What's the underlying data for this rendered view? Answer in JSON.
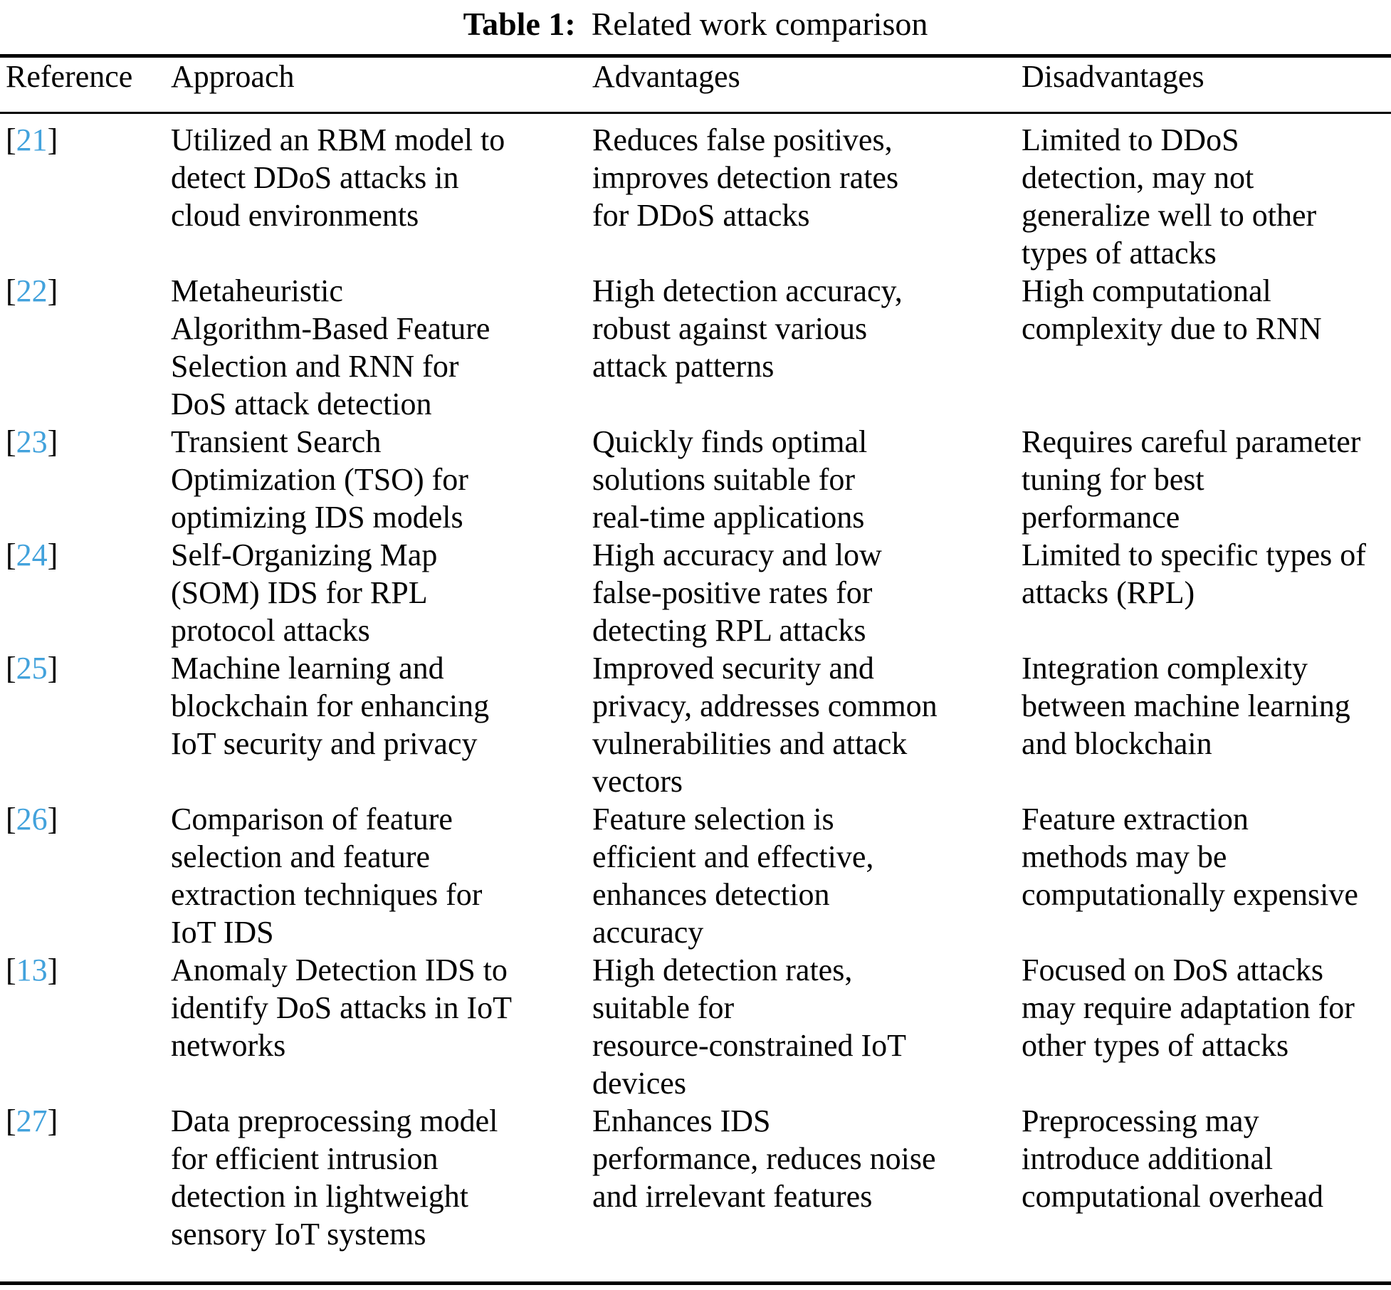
{
  "title": {
    "label": "Table 1:",
    "text": "Related work comparison"
  },
  "colors": {
    "reference_link_blue": "#42a2dc",
    "rule_black": "#000000",
    "text_black": "#000000"
  },
  "table": {
    "headers": [
      "Reference",
      "Approach",
      "Advantages",
      "Disadvantages"
    ],
    "bracket_open": "[",
    "bracket_close": "]",
    "rows": [
      {
        "ref": "21",
        "approach": [
          "Utilized an RBM model to",
          "detect DDoS attacks in",
          "cloud environments"
        ],
        "advantages": [
          "Reduces false positives,",
          "improves detection rates",
          "for DDoS attacks"
        ],
        "disadvantages": [
          "Limited to DDoS",
          "detection, may not",
          "generalize well to other",
          "types of attacks"
        ]
      },
      {
        "ref": "22",
        "approach": [
          "Metaheuristic",
          "Algorithm-Based Feature",
          "Selection and RNN for",
          "DoS attack detection"
        ],
        "advantages": [
          "High detection accuracy,",
          "robust against various",
          "attack patterns"
        ],
        "disadvantages": [
          "High computational",
          "complexity due to RNN"
        ]
      },
      {
        "ref": "23",
        "approach": [
          "Transient Search",
          "Optimization (TSO) for",
          "optimizing IDS models"
        ],
        "advantages": [
          "Quickly finds optimal",
          "solutions suitable for",
          "real-time applications"
        ],
        "disadvantages": [
          "Requires careful parameter",
          "tuning for best",
          "performance"
        ]
      },
      {
        "ref": "24",
        "approach": [
          "Self-Organizing Map",
          "(SOM) IDS for RPL",
          "protocol attacks"
        ],
        "advantages": [
          "High accuracy and low",
          "false-positive rates for",
          "detecting RPL attacks"
        ],
        "disadvantages": [
          "Limited to specific types of",
          "attacks (RPL)"
        ]
      },
      {
        "ref": "25",
        "approach": [
          "Machine learning and",
          "blockchain for enhancing",
          "IoT security and privacy"
        ],
        "advantages": [
          "Improved security and",
          "privacy, addresses common",
          "vulnerabilities and attack",
          "vectors"
        ],
        "disadvantages": [
          "Integration complexity",
          "between machine learning",
          "and blockchain"
        ]
      },
      {
        "ref": "26",
        "approach": [
          "Comparison of feature",
          "selection and feature",
          "extraction techniques for",
          "IoT IDS"
        ],
        "advantages": [
          "Feature selection is",
          "efficient and effective,",
          "enhances detection",
          "accuracy"
        ],
        "disadvantages": [
          "Feature extraction",
          "methods may be",
          "computationally expensive"
        ]
      },
      {
        "ref": "13",
        "approach": [
          "Anomaly Detection IDS to",
          "identify DoS attacks in IoT",
          "networks"
        ],
        "advantages": [
          "High detection rates,",
          "suitable for",
          "resource-constrained IoT",
          "devices"
        ],
        "disadvantages": [
          "Focused on DoS attacks",
          "may require adaptation for",
          "other types of attacks"
        ]
      },
      {
        "ref": "27",
        "approach": [
          "Data preprocessing model",
          "for efficient intrusion",
          "detection in lightweight",
          "sensory IoT systems"
        ],
        "advantages": [
          "Enhances IDS",
          "performance, reduces noise",
          "and irrelevant features"
        ],
        "disadvantages": [
          "Preprocessing may",
          "introduce additional",
          "computational overhead"
        ]
      }
    ]
  }
}
